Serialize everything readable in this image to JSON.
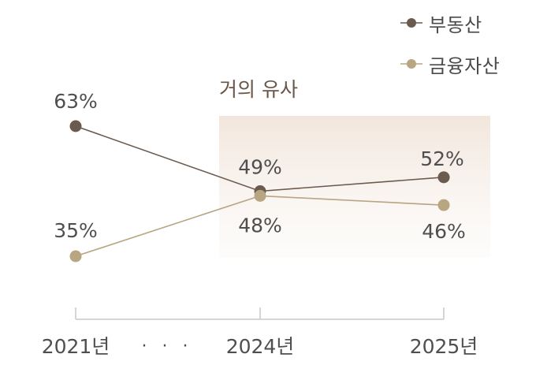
{
  "chart_data": {
    "type": "line",
    "categories": [
      "2021년",
      "2024년",
      "2025년"
    ],
    "axis_gap_marker": "· · ·",
    "series": [
      {
        "name": "부동산",
        "values": [
          63,
          49,
          52
        ],
        "labels": [
          "63%",
          "49%",
          "52%"
        ],
        "color": "#6b5b4e"
      },
      {
        "name": "금융자산",
        "values": [
          35,
          48,
          46
        ],
        "labels": [
          "35%",
          "48%",
          "46%"
        ],
        "color": "#b8a582"
      }
    ],
    "highlight": {
      "label": "거의 유사",
      "from_category": "2024년",
      "to_category": "2025년",
      "color": "#f3e9e1"
    },
    "ylim": [
      25,
      75
    ],
    "grid": false,
    "legend_position": "top-right"
  }
}
